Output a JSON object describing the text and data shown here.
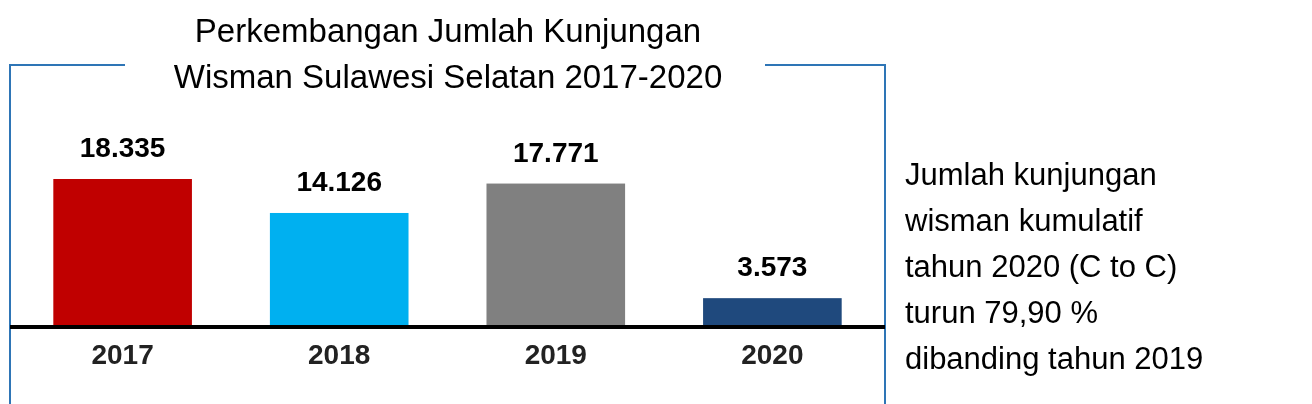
{
  "chart_data": {
    "type": "bar",
    "title": "Perkembangan Jumlah Kunjungan Wisman Sulawesi Selatan 2017-2020",
    "categories": [
      "2017",
      "2018",
      "2019",
      "2020"
    ],
    "values": [
      18335,
      14126,
      17771,
      3573
    ],
    "value_labels": [
      "18.335",
      "14.126",
      "17.771",
      "3.573"
    ],
    "colors": [
      "#c00000",
      "#00b0f0",
      "#808080",
      "#1f497d"
    ],
    "annotations": [
      "Jumlah kunjungan wisman kumulatif tahun 2020 (C to C) turun 79,90 % dibanding tahun 2019"
    ]
  }
}
